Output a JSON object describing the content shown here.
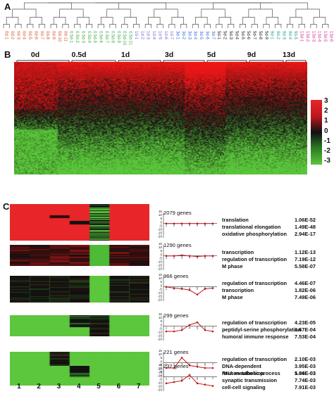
{
  "panels": {
    "a": "A",
    "b": "B",
    "c": "C"
  },
  "sample_labels": [
    "0d-1",
    "0d-2",
    "0d-3",
    "0d-4",
    "0d-5",
    "0d-6",
    "0d-7",
    "0d-8",
    "0d-9",
    "0d-10",
    "0d-11",
    "0.5d-1",
    "0.5d-2",
    "0.5d-3",
    "0.5d-4",
    "0.5d-5",
    "0.5d-6",
    "0.5d-7",
    "0.5d-8",
    "0.5d-9",
    "0.5d-10",
    "0.5d-11",
    "1d-1",
    "1d-2",
    "1d-3",
    "1d-4",
    "1d-5",
    "1d-6",
    "1d-7",
    "3d-1",
    "3d-2",
    "3d-3",
    "3d-4",
    "3d-5",
    "3d-6",
    "3d-7",
    "5d-1",
    "5d-2",
    "5d-3",
    "5d-4",
    "5d-5",
    "5d-6",
    "5d-7",
    "5d-8",
    "5d-9",
    "9d-1",
    "9d-2",
    "9d-3",
    "9d-4",
    "9d-5",
    "13d-1",
    "13d-2",
    "13d-3",
    "13d-4",
    "13d-5",
    "13d-6"
  ],
  "sample_colors": {
    "0d": "#d9542b",
    "0.5d": "#3fa94a",
    "1d": "#7a6ad1",
    "3d": "#3a6fd6",
    "5d": "#222222",
    "9d": "#2a9d8f",
    "13d": "#d23a9a"
  },
  "timepoints": [
    "0d",
    "0.5d",
    "1d",
    "3d",
    "5d",
    "9d",
    "13d"
  ],
  "color_scale": {
    "labels": [
      "3",
      "2",
      "1",
      "0",
      "-1",
      "-2",
      "-3"
    ],
    "high": "#e8262a",
    "mid": "#111111",
    "low": "#5cc63d"
  },
  "cluster_columns": [
    "1",
    "2",
    "3",
    "4",
    "5",
    "6",
    "7"
  ],
  "profile_axis": {
    "ticks": [
      "15",
      "10",
      "5",
      "0",
      "-5",
      "-10",
      "-15",
      "-20"
    ],
    "x_ticks": [
      "1",
      "2",
      "3",
      "4",
      "5",
      "6",
      "7"
    ]
  },
  "clusters": [
    {
      "genes": "2079 genes",
      "terms": [
        {
          "name": "translation",
          "p": "1.06E-52"
        },
        {
          "name": "translational elongation",
          "p": "1.49E-48"
        },
        {
          "name": "oxidative phosphorylation",
          "p": "2.94E-17"
        }
      ]
    },
    {
      "genes": "1290 genes",
      "terms": [
        {
          "name": "transcription",
          "p": "1.12E-13"
        },
        {
          "name": "regulation of transcription",
          "p": "7.19E-12"
        },
        {
          "name": "M phase",
          "p": "5.58E-07"
        }
      ]
    },
    {
      "genes": "966 genes",
      "terms": [
        {
          "name": "regulation of transcription",
          "p": "4.46E-07"
        },
        {
          "name": "transcription",
          "p": "1.82E-06"
        },
        {
          "name": "M phase",
          "p": "7.49E-06"
        }
      ]
    },
    {
      "genes": "299 genes",
      "terms": [
        {
          "name": "regulation of transcription",
          "p": "4.23E-05"
        },
        {
          "name": "peptidyl-serine phosphorylation",
          "p": "1.67E-04"
        },
        {
          "name": "humoral immune response",
          "p": "7.53E-04"
        }
      ]
    },
    {
      "genes": "221 genes",
      "terms": [
        {
          "name": "regulation of transcription",
          "p": "2.10E-03"
        },
        {
          "name": "DNA-dependent",
          "p": "3.95E-03"
        },
        {
          "name": "RNA metabolic process",
          "p": "5.36E-03"
        }
      ]
    },
    {
      "genes": "232 genes",
      "terms": [
        {
          "name": "neuron  adhesion",
          "p": "1.64E-03"
        },
        {
          "name": "synaptic transmission",
          "p": "7.74E-03"
        },
        {
          "name": "cell-cell signaling",
          "p": "7.91E-03"
        }
      ]
    }
  ]
}
